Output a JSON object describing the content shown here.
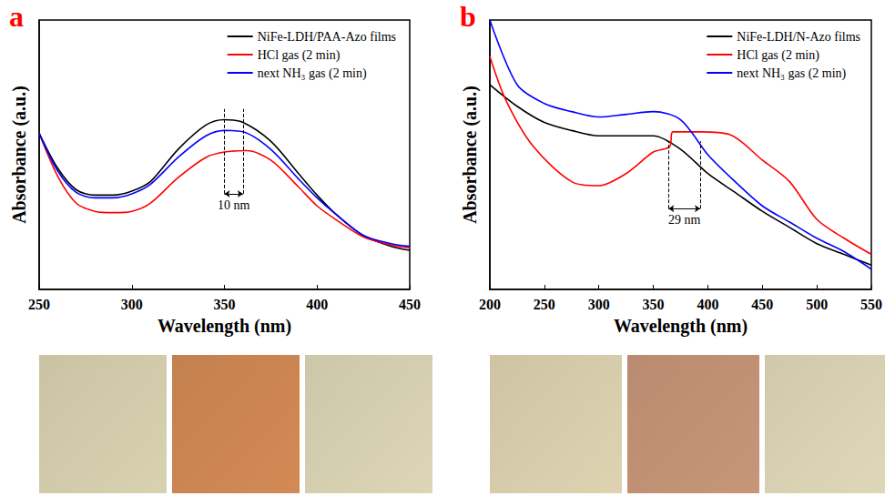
{
  "chart_data": [
    {
      "type": "line",
      "title": "a",
      "x_label": "Wavelength (nm)",
      "y_label": "Absorbance (a.u.)",
      "xlim": [
        250,
        450
      ],
      "xticks": [
        250,
        300,
        350,
        400,
        450
      ],
      "ylim": [
        0,
        1
      ],
      "tick_labels": "x",
      "grid": false,
      "legend": "upper right",
      "series": [
        {
          "name": "NiFe-LDH/PAA-Azo films",
          "color": "#000000",
          "x": [
            250,
            260,
            270,
            280,
            290,
            300,
            310,
            325,
            340,
            350,
            360,
            375,
            390,
            400,
            410,
            425,
            440,
            450
          ],
          "values": [
            0.58,
            0.45,
            0.37,
            0.35,
            0.35,
            0.365,
            0.4,
            0.52,
            0.61,
            0.63,
            0.62,
            0.55,
            0.43,
            0.35,
            0.28,
            0.2,
            0.16,
            0.145
          ]
        },
        {
          "name": "HCl gas (2 min)",
          "color": "#ff0000",
          "x": [
            250,
            260,
            270,
            280,
            290,
            300,
            310,
            325,
            340,
            350,
            362,
            375,
            390,
            400,
            410,
            425,
            440,
            450
          ],
          "values": [
            0.58,
            0.42,
            0.32,
            0.29,
            0.285,
            0.29,
            0.32,
            0.415,
            0.49,
            0.51,
            0.515,
            0.48,
            0.38,
            0.31,
            0.26,
            0.195,
            0.165,
            0.155
          ]
        },
        {
          "name": "next NH₃ gas (2 min)",
          "color": "#0000ff",
          "x": [
            250,
            260,
            270,
            280,
            290,
            300,
            310,
            325,
            340,
            350,
            360,
            375,
            390,
            400,
            410,
            425,
            440,
            450
          ],
          "values": [
            0.58,
            0.44,
            0.36,
            0.34,
            0.34,
            0.355,
            0.39,
            0.49,
            0.57,
            0.59,
            0.585,
            0.52,
            0.41,
            0.34,
            0.28,
            0.2,
            0.17,
            0.16
          ]
        }
      ],
      "annotations": [
        {
          "text": "10 nm",
          "x": [
            350,
            360
          ],
          "y": [
            0.355,
            0.67
          ]
        }
      ]
    },
    {
      "type": "line",
      "title": "b",
      "x_label": "Wavelength (nm)",
      "y_label": "Absorbance (a.u.)",
      "xlim": [
        200,
        550
      ],
      "xticks": [
        200,
        250,
        300,
        350,
        400,
        450,
        500,
        550
      ],
      "ylim": [
        0,
        1
      ],
      "tick_labels": "x",
      "grid": false,
      "legend": "upper right",
      "series": [
        {
          "name": "NiFe-LDH/N-Azo films",
          "color": "#000000",
          "x": [
            200,
            225,
            250,
            275,
            300,
            325,
            350,
            375,
            400,
            425,
            450,
            475,
            500,
            525,
            550
          ],
          "values": [
            0.76,
            0.68,
            0.62,
            0.59,
            0.57,
            0.57,
            0.57,
            0.52,
            0.43,
            0.36,
            0.29,
            0.23,
            0.17,
            0.13,
            0.09
          ]
        },
        {
          "name": "HCl gas (2 min)",
          "color": "#ff0000",
          "x": [
            200,
            215,
            240,
            275,
            300,
            325,
            350,
            365,
            368,
            393,
            420,
            450,
            475,
            500,
            525,
            550
          ],
          "values": [
            0.865,
            0.7,
            0.53,
            0.4,
            0.385,
            0.43,
            0.51,
            0.53,
            0.585,
            0.585,
            0.575,
            0.48,
            0.4,
            0.26,
            0.19,
            0.13
          ]
        },
        {
          "name": "next NH₃ gas (2 min)",
          "color": "#0000ff",
          "x": [
            200,
            225,
            250,
            275,
            300,
            325,
            350,
            375,
            400,
            425,
            450,
            475,
            500,
            525,
            550
          ],
          "values": [
            1.0,
            0.76,
            0.69,
            0.66,
            0.64,
            0.65,
            0.66,
            0.63,
            0.5,
            0.4,
            0.31,
            0.25,
            0.19,
            0.14,
            0.075
          ]
        }
      ],
      "annotations": [
        {
          "text": "29 nm",
          "x": [
            364,
            393
          ],
          "y": [
            0.3,
            0.55
          ]
        }
      ]
    }
  ]
}
